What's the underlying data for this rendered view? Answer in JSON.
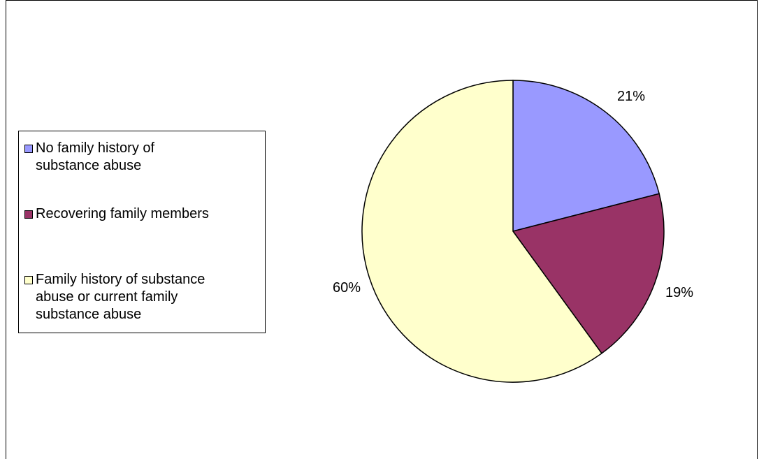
{
  "chart_data": {
    "type": "pie",
    "title": "",
    "categories": [
      "No family history of substance abuse",
      "Recovering family members",
      "Family history of substance abuse or current family substance abuse"
    ],
    "values": [
      21,
      19,
      60
    ],
    "data_labels": [
      "21%",
      "19%",
      "60%"
    ],
    "colors": [
      "#9999ff",
      "#993366",
      "#ffffcc"
    ],
    "legend_position": "left",
    "start_angle_deg": 0,
    "direction": "clockwise"
  },
  "legend": {
    "items": [
      {
        "label": "No family history of\nsubstance abuse",
        "color": "#9999ff"
      },
      {
        "label": "Recovering family members",
        "color": "#993366"
      },
      {
        "label": "Family history of substance\nabuse or current family\nsubstance abuse",
        "color": "#ffffcc"
      }
    ]
  }
}
